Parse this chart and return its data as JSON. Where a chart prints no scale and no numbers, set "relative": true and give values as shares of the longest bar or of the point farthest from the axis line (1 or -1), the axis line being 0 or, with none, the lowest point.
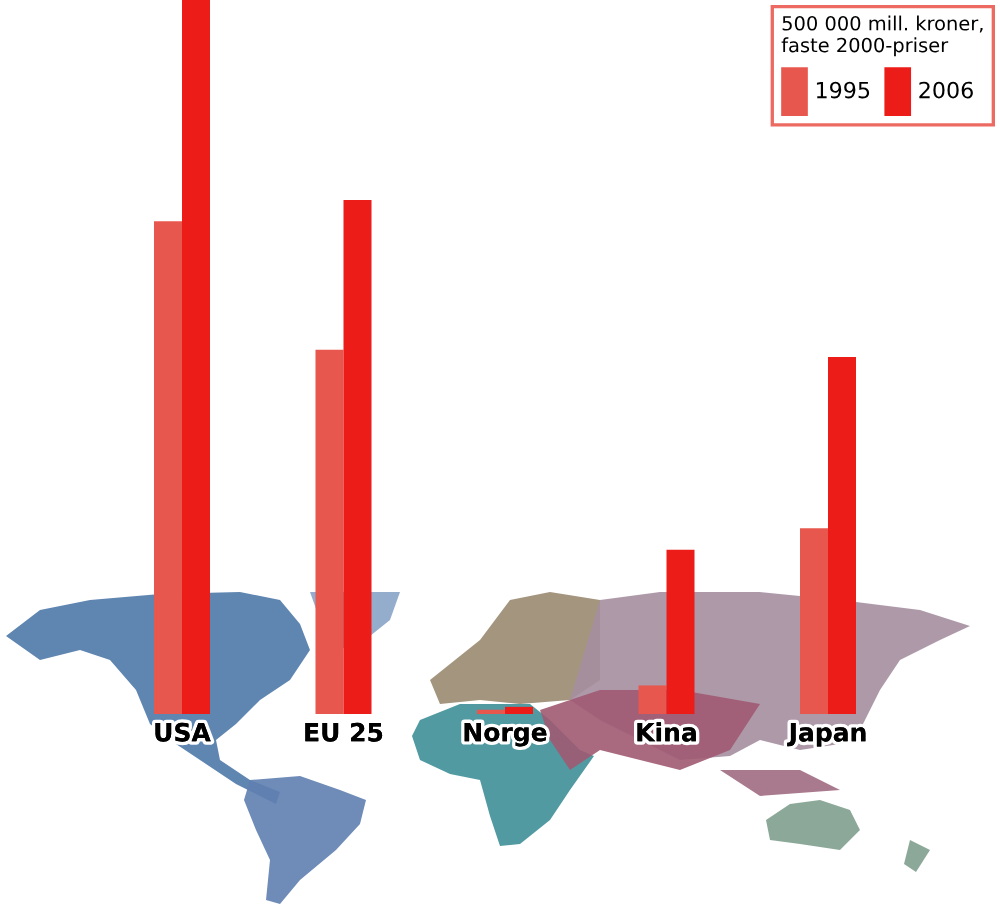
{
  "chart_data": {
    "type": "bar",
    "relative": true,
    "legend_title": "500 000 mill. kroner, faste 2000-priser",
    "categories": [
      "USA",
      "EU 25",
      "Norge",
      "Kina",
      "Japan"
    ],
    "series": [
      {
        "name": "1995",
        "color": "#e8574e",
        "values": [
          0.69,
          0.51,
          0.006,
          0.04,
          0.26
        ]
      },
      {
        "name": "2006",
        "color": "#ec1c18",
        "values": [
          1,
          0.72,
          0.01,
          0.23,
          0.5
        ]
      }
    ],
    "legend": "top right"
  }
}
